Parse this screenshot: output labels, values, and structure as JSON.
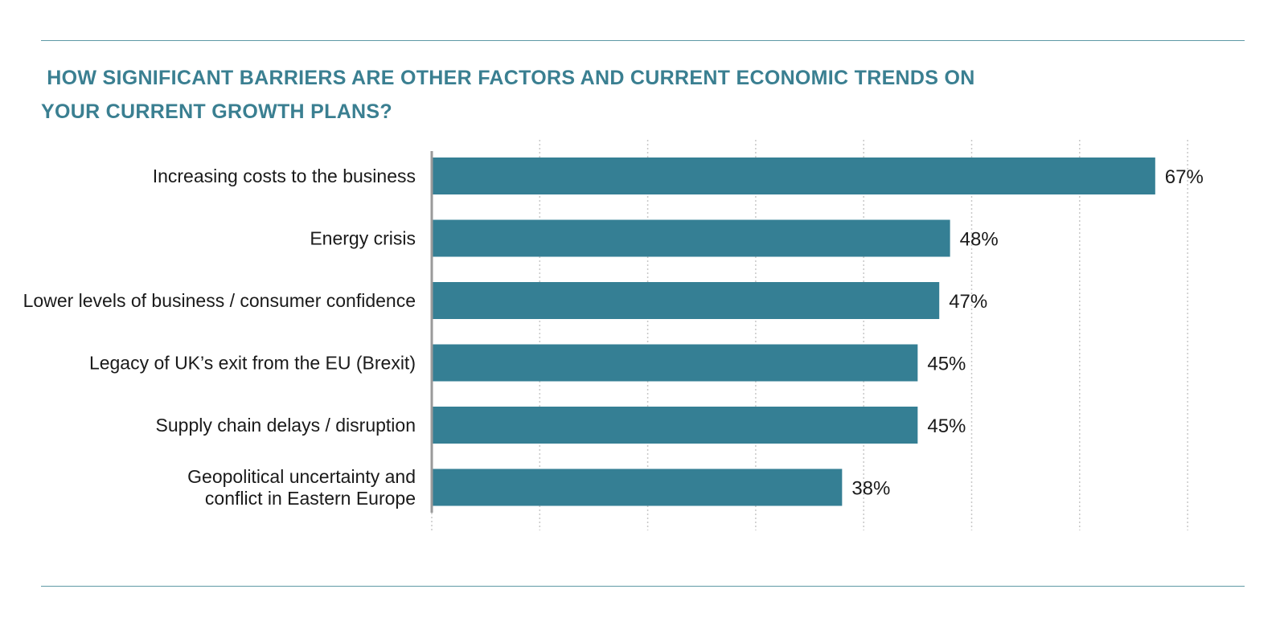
{
  "title_lines": [
    " HOW SIGNIFICANT BARRIERS ARE OTHER FACTORS AND CURRENT ECONOMIC TRENDS ON",
    "YOUR CURRENT GROWTH PLANS?"
  ],
  "colors": {
    "bar": "#357f94",
    "title": "#3a7f91",
    "rule": "#5f9aa6",
    "grid": "#c8c8c8",
    "axis": "#9a9a9a"
  },
  "chart_data": {
    "type": "bar",
    "orientation": "horizontal",
    "title": "HOW SIGNIFICANT BARRIERS ARE OTHER FACTORS AND CURRENT ECONOMIC TRENDS ON YOUR CURRENT GROWTH PLANS?",
    "categories": [
      [
        "Increasing costs to the business"
      ],
      [
        "Energy crisis"
      ],
      [
        "Lower levels of business / consumer confidence"
      ],
      [
        "Legacy of UK’s exit from the EU (Brexit)"
      ],
      [
        "Supply chain delays / disruption"
      ],
      [
        "Geopolitical uncertainty and",
        "conflict in Eastern Europe"
      ]
    ],
    "values": [
      67,
      48,
      47,
      45,
      45,
      38
    ],
    "value_labels": [
      "67%",
      "48%",
      "47%",
      "45%",
      "45%",
      "38%"
    ],
    "xlim": [
      0,
      70
    ],
    "grid_step": 10,
    "grid": true,
    "legend": "none"
  }
}
